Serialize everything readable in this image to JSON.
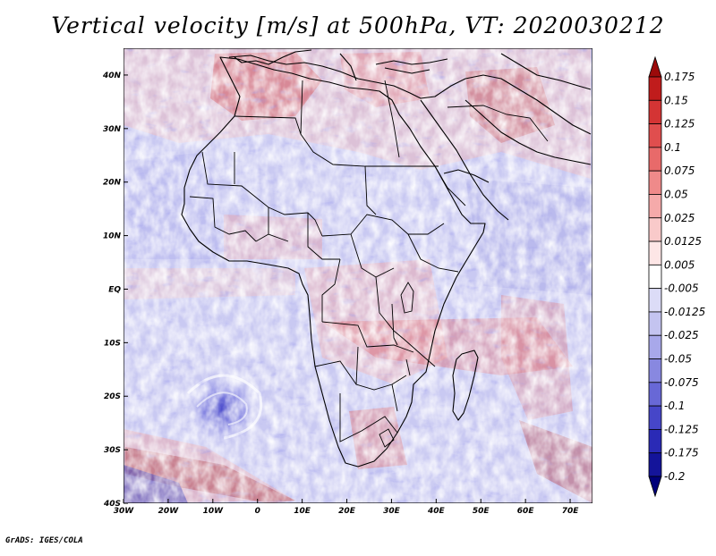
{
  "title": "Vertical velocity [m/s] at 500hPa, VT: 2020030212",
  "credit": "GrADS: IGES/COLA",
  "map": {
    "region": "Africa",
    "lat_labels": [
      "40N",
      "30N",
      "20N",
      "10N",
      "EQ",
      "10S",
      "20S",
      "30S",
      "40S"
    ],
    "lon_labels": [
      "30W",
      "20W",
      "10W",
      "0",
      "10E",
      "20E",
      "30E",
      "40E",
      "50E",
      "60E",
      "70E"
    ],
    "lat_range": [
      -40,
      45
    ],
    "lon_range": [
      -30,
      75
    ]
  },
  "colorbar": {
    "labels": [
      "0.175",
      "0.15",
      "0.125",
      "0.1",
      "0.075",
      "0.05",
      "0.025",
      "0.0125",
      "0.005",
      "-0.005",
      "-0.0125",
      "-0.025",
      "-0.05",
      "-0.075",
      "-0.1",
      "-0.125",
      "-0.175",
      "-0.2"
    ],
    "colors": [
      "#9c0a0a",
      "#c01c1c",
      "#d43434",
      "#e04e4e",
      "#e86a6a",
      "#ef8a8a",
      "#f5aaaa",
      "#f9caca",
      "#fde6e6",
      "#ffffff",
      "#dcdcf7",
      "#c4c4f0",
      "#a8a8ea",
      "#8888e0",
      "#6868d6",
      "#4646c8",
      "#2a2ab6",
      "#14149a",
      "#00007a"
    ]
  }
}
